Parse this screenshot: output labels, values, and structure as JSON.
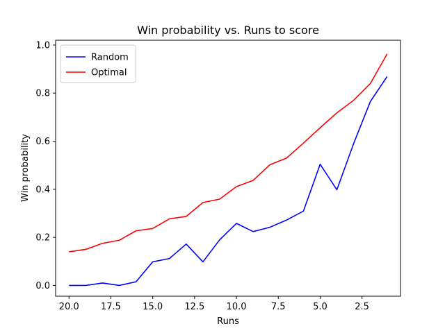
{
  "chart_data": {
    "type": "line",
    "title": "Win probability vs. Runs to score",
    "xlabel": "Runs",
    "ylabel": "Win probability",
    "x": [
      20,
      19,
      18,
      17,
      16,
      15,
      14,
      13,
      12,
      11,
      10,
      9,
      8,
      7,
      6,
      5,
      4,
      3,
      2,
      1
    ],
    "xlim": [
      20.8,
      0.2
    ],
    "ylim": [
      -0.045,
      1.02
    ],
    "x_ticks": [
      20.0,
      17.5,
      15.0,
      12.5,
      10.0,
      7.5,
      5.0,
      2.5
    ],
    "x_tick_labels": [
      "20.0",
      "17.5",
      "15.0",
      "12.5",
      "10.0",
      "7.5",
      "5.0",
      "2.5"
    ],
    "y_ticks": [
      0.0,
      0.2,
      0.4,
      0.6,
      0.8,
      1.0
    ],
    "y_tick_labels": [
      "0.0",
      "0.2",
      "0.4",
      "0.6",
      "0.8",
      "1.0"
    ],
    "grid": false,
    "legend_position": "top-left",
    "series": [
      {
        "name": "Random",
        "color": "#0000ff",
        "values": [
          0.0,
          0.0,
          0.01,
          0.0,
          0.015,
          0.098,
          0.112,
          0.172,
          0.098,
          0.19,
          0.258,
          0.224,
          0.242,
          0.272,
          0.309,
          0.504,
          0.398,
          0.59,
          0.765,
          0.869
        ]
      },
      {
        "name": "Optimal",
        "color": "#ff0000",
        "values": [
          0.14,
          0.15,
          0.175,
          0.188,
          0.227,
          0.237,
          0.277,
          0.287,
          0.345,
          0.359,
          0.411,
          0.437,
          0.502,
          0.53,
          0.592,
          0.656,
          0.718,
          0.77,
          0.84,
          0.963
        ]
      }
    ]
  }
}
